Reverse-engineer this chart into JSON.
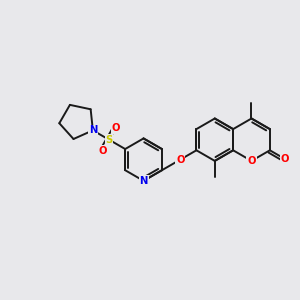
{
  "bg_color": "#e8e8eb",
  "bond_color": "#1a1a1a",
  "bond_width": 1.4,
  "atom_colors": {
    "O": "#ff0000",
    "N": "#0000ee",
    "S": "#cccc00",
    "C": "#1a1a1a"
  },
  "font_size": 7.2,
  "figsize": [
    3.0,
    3.0
  ],
  "dpi": 100,
  "xlim": [
    0,
    10
  ],
  "ylim": [
    0,
    10
  ]
}
